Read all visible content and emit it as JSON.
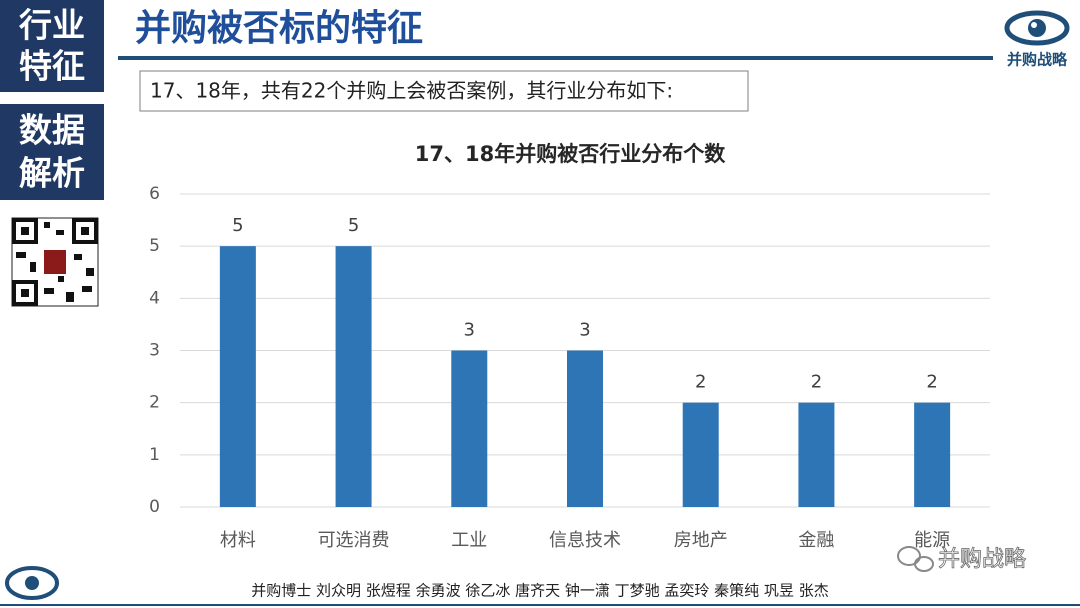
{
  "sidebar": {
    "blocks": [
      [
        "行业",
        "特征"
      ],
      [
        "数据",
        "解析"
      ]
    ]
  },
  "header": {
    "title": "并购被否标的特征",
    "logo_text": "并购战略"
  },
  "intro": "17、18年，共有22个并购上会被否案例，其行业分布如下:",
  "chart_data": {
    "type": "bar",
    "title": "17、18年并购被否行业分布个数",
    "categories": [
      "材料",
      "可选消费",
      "工业",
      "信息技术",
      "房地产",
      "金融",
      "能源"
    ],
    "values": [
      5,
      5,
      3,
      3,
      2,
      2,
      2
    ],
    "color": "#2e75b6",
    "ylim": [
      0,
      6
    ],
    "yticks": [
      0,
      1,
      2,
      3,
      4,
      5,
      6
    ],
    "grid": true
  },
  "footer": {
    "authors": "并购博士  刘众明 张煜程 余勇波 徐乙冰 唐齐天 钟一潇 丁梦驰 孟奕玲 秦策纯 巩昱 张杰",
    "watermark": "并购战略"
  }
}
